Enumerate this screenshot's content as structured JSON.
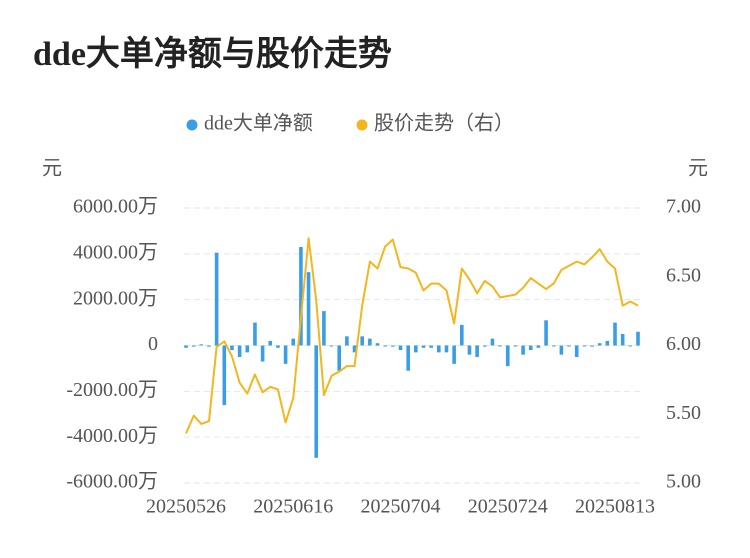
{
  "chart_data": {
    "type": "bar-line",
    "title": "dde大单净额与股价走势",
    "y_axis_label": "元",
    "y2_axis_label": "元",
    "categories": [
      "20250526",
      null,
      null,
      null,
      null,
      null,
      null,
      null,
      null,
      null,
      null,
      null,
      null,
      null,
      "20250616",
      null,
      null,
      null,
      null,
      null,
      null,
      null,
      null,
      null,
      null,
      null,
      null,
      null,
      "20250704",
      null,
      null,
      null,
      null,
      null,
      null,
      null,
      null,
      null,
      null,
      null,
      null,
      null,
      "20250724",
      null,
      null,
      null,
      null,
      null,
      null,
      null,
      null,
      null,
      null,
      null,
      null,
      null,
      "20250813",
      null,
      null,
      null
    ],
    "series": [
      {
        "name": "dde大单净额",
        "type": "bar",
        "color": "#3a9ee6",
        "values": [
          -100,
          -50,
          50,
          -50,
          4050,
          -2600,
          -200,
          -500,
          -300,
          1000,
          -700,
          200,
          -100,
          -800,
          300,
          4300,
          3200,
          -4900,
          1500,
          0,
          -1100,
          400,
          -300,
          400,
          300,
          100,
          0,
          -50,
          -200,
          -1100,
          -300,
          -100,
          -100,
          -300,
          -300,
          -800,
          900,
          -400,
          -500,
          -50,
          300,
          0,
          -900,
          0,
          -400,
          -200,
          -100,
          1100,
          0,
          -400,
          0,
          -500,
          0,
          -50,
          100,
          200,
          1000,
          500,
          0,
          600
        ]
      },
      {
        "name": "股价走势（右）",
        "type": "line",
        "axis": "y2",
        "color": "#f4b61e",
        "values": [
          5.36,
          5.49,
          5.43,
          5.45,
          5.99,
          6.03,
          5.92,
          5.73,
          5.65,
          5.79,
          5.66,
          5.7,
          5.68,
          5.44,
          5.62,
          6.2,
          6.78,
          6.33,
          5.64,
          5.78,
          5.81,
          5.85,
          5.85,
          6.29,
          6.61,
          6.56,
          6.72,
          6.77,
          6.57,
          6.56,
          6.53,
          6.4,
          6.45,
          6.45,
          6.4,
          6.16,
          6.56,
          6.48,
          6.38,
          6.47,
          6.43,
          6.35,
          6.36,
          6.37,
          6.42,
          6.49,
          6.45,
          6.41,
          6.45,
          6.55,
          6.58,
          6.61,
          6.59,
          6.64,
          6.7,
          6.61,
          6.56,
          6.29,
          6.32,
          6.29
        ]
      }
    ],
    "ylim": [
      -6000,
      6000
    ],
    "yticks": [
      {
        "value": -6000,
        "label": "-6000.00万"
      },
      {
        "value": -4000,
        "label": "-4000.00万"
      },
      {
        "value": -2000,
        "label": "-2000.00万"
      },
      0,
      {
        "value": 2000,
        "label": "2000.00万"
      },
      {
        "value": 4000,
        "label": "4000.00万"
      },
      {
        "value": 6000,
        "label": "6000.00万"
      }
    ],
    "y2lim": [
      5,
      7
    ],
    "y2ticks": [
      {
        "value": 5,
        "label": "5.00"
      },
      {
        "value": 5.5,
        "label": "5.50"
      },
      {
        "value": 6,
        "label": "6.00"
      },
      {
        "value": 6.5,
        "label": "6.50"
      },
      {
        "value": 7,
        "label": "7.00"
      }
    ],
    "grid": true
  }
}
